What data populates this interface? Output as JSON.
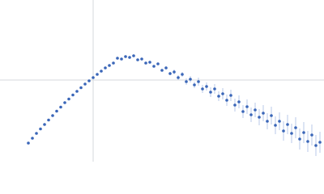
{
  "chart_data": {
    "type": "scatter",
    "xlim": [
      0,
      400
    ],
    "ylim": [
      0,
      200
    ],
    "xticks": [
      115
    ],
    "yticks": [
      101
    ],
    "grid": true,
    "tick_labels": false,
    "error_color": "#a9bde3",
    "series": [
      {
        "color": "#3a66b8",
        "x": [
          35,
          40,
          45,
          50,
          55,
          60,
          65,
          70,
          75,
          80,
          85,
          90,
          95,
          100,
          105,
          110,
          115,
          120,
          125,
          130,
          135,
          140,
          145,
          150,
          155,
          160,
          165,
          170,
          175,
          180,
          185,
          190,
          195,
          200,
          205,
          210,
          215,
          220,
          225,
          230,
          235,
          240,
          245,
          250,
          255,
          260,
          265,
          270,
          275,
          280,
          285,
          290,
          295,
          300,
          305,
          310,
          315,
          320,
          325,
          330,
          335,
          340,
          345,
          350,
          355,
          360,
          365,
          370,
          375,
          380,
          385,
          390,
          395
        ],
        "values": [
          23,
          29,
          35,
          40.5,
          46,
          51.5,
          57,
          62.5,
          67.5,
          73,
          77.5,
          82.5,
          87,
          91.5,
          96,
          100,
          104,
          108,
          112,
          116,
          119,
          122,
          128,
          127,
          130,
          129,
          131,
          126,
          127,
          122,
          123,
          118,
          121,
          113,
          116,
          109,
          111,
          104,
          108,
          99,
          102,
          95,
          99,
          90,
          93,
          86,
          90,
          81,
          84,
          76,
          82,
          70,
          74,
          62,
          68,
          58,
          64,
          55,
          60,
          50,
          57,
          45,
          50,
          38,
          46,
          35,
          42,
          28,
          36,
          25,
          33,
          20,
          24
        ],
        "errors": [
          1,
          1,
          1,
          1,
          1,
          1,
          1,
          1,
          1,
          1,
          1,
          1,
          1,
          1,
          1,
          1,
          1,
          1,
          1,
          1,
          1,
          1,
          1,
          1,
          1,
          1,
          1,
          1,
          1,
          1,
          1,
          1,
          1,
          1,
          2,
          2,
          3,
          3,
          3,
          4,
          4,
          4,
          5,
          5,
          5,
          6,
          6,
          6,
          7,
          7,
          7,
          8,
          8,
          8,
          9,
          9,
          9,
          10,
          10,
          10,
          11,
          11,
          11,
          12,
          12,
          12,
          13,
          13,
          13,
          13,
          13,
          13,
          13
        ]
      }
    ]
  }
}
